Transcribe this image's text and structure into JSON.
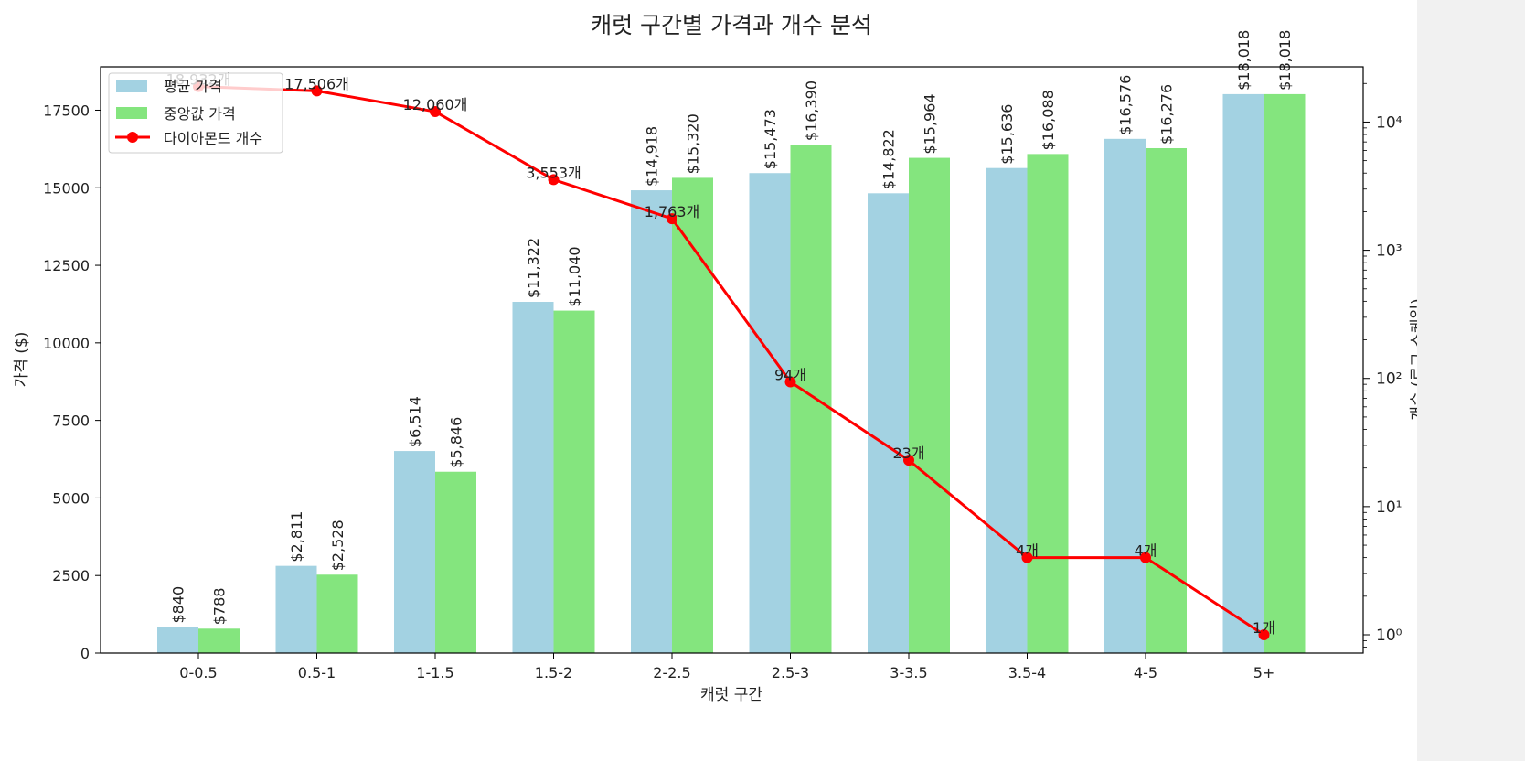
{
  "chart_data": {
    "type": "bar",
    "title": "캐럿 구간별 가격과 개수 분석",
    "xlabel": "캐럿 구간",
    "ylabel": "가격 ($)",
    "y2label": "개수 (로그 스케일)",
    "categories": [
      "0-0.5",
      "0.5-1",
      "1-1.5",
      "1.5-2",
      "2-2.5",
      "2.5-3",
      "3-3.5",
      "3.5-4",
      "4-5",
      "5+"
    ],
    "ylim": [
      0,
      18900
    ],
    "y_ticks": [
      0,
      2500,
      5000,
      7500,
      10000,
      12500,
      15000,
      17500
    ],
    "y2_scale": "log",
    "y2lim": [
      0.72,
      27000
    ],
    "y2_ticks": [
      {
        "value": 1,
        "label": "10⁰"
      },
      {
        "value": 10,
        "label": "10¹"
      },
      {
        "value": 100,
        "label": "10²"
      },
      {
        "value": 1000,
        "label": "10³"
      },
      {
        "value": 10000,
        "label": "10⁴"
      }
    ],
    "legend": "top-left",
    "grid": false,
    "series": [
      {
        "name": "평균 가격",
        "kind": "bar",
        "color": "#a3d2e2",
        "values": [
          840,
          2811,
          6514,
          11322,
          14918,
          15473,
          14822,
          15636,
          16576,
          18018
        ],
        "labels": [
          "$840",
          "$2,811",
          "$6,514",
          "$11,322",
          "$14,918",
          "$15,473",
          "$14,822",
          "$15,636",
          "$16,576",
          "$18,018"
        ]
      },
      {
        "name": "중앙값 가격",
        "kind": "bar",
        "color": "#84e57e",
        "values": [
          788,
          2528,
          5846,
          11040,
          15320,
          16390,
          15964,
          16088,
          16276,
          18018
        ],
        "labels": [
          "$788",
          "$2,528",
          "$5,846",
          "$11,040",
          "$15,320",
          "$16,390",
          "$15,964",
          "$16,088",
          "$16,276",
          "$18,018"
        ]
      },
      {
        "name": "다이아몬드 개수",
        "kind": "line",
        "axis": "right",
        "color": "#ff0000",
        "values": [
          18932,
          17506,
          12060,
          3553,
          1763,
          94,
          23,
          4,
          4,
          1
        ],
        "labels": [
          "18,932개",
          "17,506개",
          "12,060개",
          "3,553개",
          "1,763개",
          "94개",
          "23개",
          "4개",
          "4개",
          "1개"
        ]
      }
    ]
  }
}
